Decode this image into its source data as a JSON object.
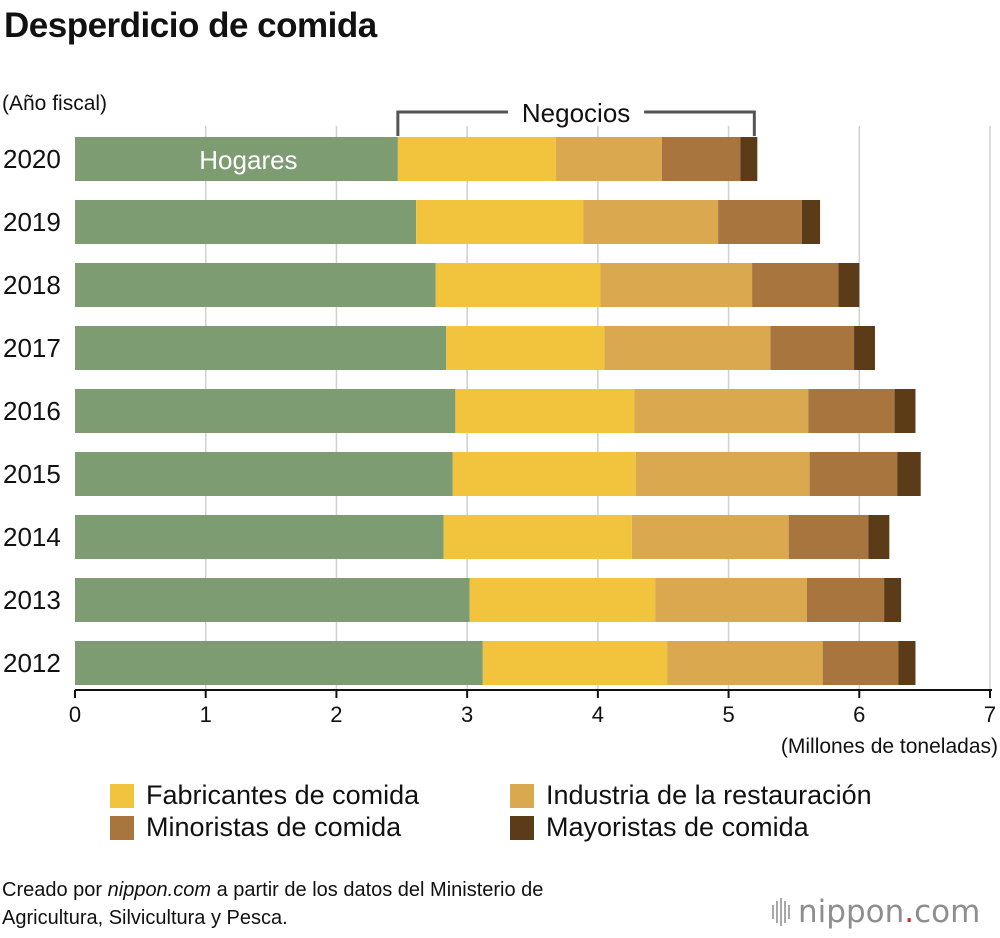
{
  "title": "Desperdicio de comida",
  "y_axis_label": "(Año fiscal)",
  "x_unit_label": "(Millones de toneladas)",
  "annotation_hogares": "Hogares",
  "annotation_negocios": "Negocios",
  "legend": [
    {
      "label": "Fabricantes de comida",
      "color": "#F2C43D"
    },
    {
      "label": "Industria de la restauración",
      "color": "#DAA84F"
    },
    {
      "label": "Minoristas de comida",
      "color": "#A8753E"
    },
    {
      "label": "Mayoristas de comida",
      "color": "#5C3B19"
    }
  ],
  "source_prefix": "Creado por ",
  "source_site": "nippon.com",
  "source_rest": " a partir de los datos del Ministerio de",
  "source_line2": "Agricultura, Silvicultura y Pesca.",
  "logo": {
    "name": "nippon",
    "dot": ".",
    "tld": "com"
  },
  "chart_data": {
    "type": "bar",
    "orientation": "horizontal",
    "stacked": true,
    "title": "Desperdicio de comida",
    "xlabel": "(Millones de toneladas)",
    "ylabel": "(Año fiscal)",
    "xlim": [
      0,
      7
    ],
    "xticks": [
      0,
      1,
      2,
      3,
      4,
      5,
      6,
      7
    ],
    "grid": true,
    "categories": [
      "2020",
      "2019",
      "2018",
      "2017",
      "2016",
      "2015",
      "2014",
      "2013",
      "2012"
    ],
    "series": [
      {
        "name": "Hogares",
        "color": "#7D9C72",
        "values": [
          2.47,
          2.61,
          2.76,
          2.84,
          2.91,
          2.89,
          2.82,
          3.02,
          3.12
        ]
      },
      {
        "name": "Fabricantes de comida",
        "color": "#F2C43D",
        "values": [
          1.21,
          1.28,
          1.26,
          1.21,
          1.37,
          1.4,
          1.44,
          1.42,
          1.41
        ]
      },
      {
        "name": "Industria de la restauración",
        "color": "#DAA84F",
        "values": [
          0.81,
          1.03,
          1.16,
          1.27,
          1.33,
          1.33,
          1.2,
          1.16,
          1.19
        ]
      },
      {
        "name": "Minoristas de comida",
        "color": "#A8753E",
        "values": [
          0.6,
          0.64,
          0.66,
          0.64,
          0.66,
          0.67,
          0.61,
          0.59,
          0.58
        ]
      },
      {
        "name": "Mayoristas de comida",
        "color": "#5C3B19",
        "values": [
          0.13,
          0.14,
          0.16,
          0.16,
          0.16,
          0.18,
          0.16,
          0.13,
          0.13
        ]
      }
    ]
  }
}
